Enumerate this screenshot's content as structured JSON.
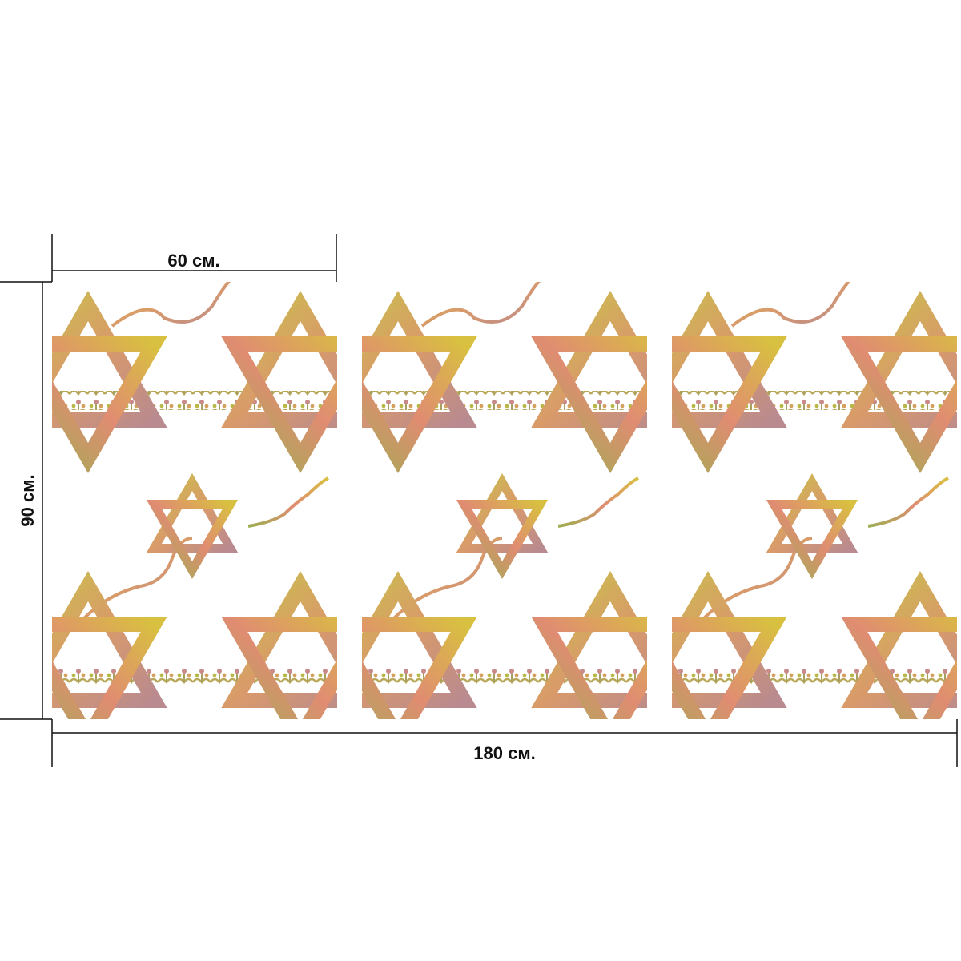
{
  "dimensions": {
    "panel_width": "60 см.",
    "height": "90 см.",
    "total_width": "180 см."
  }
}
